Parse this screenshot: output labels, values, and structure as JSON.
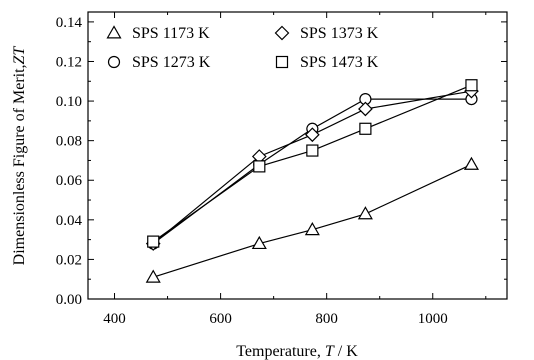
{
  "chart_data": {
    "type": "line",
    "xlabel_text": "Temperature, ",
    "xlabel_symbol": "T",
    "xlabel_unit": " / K",
    "ylabel_text": "Dimensionless Figure of Merit,",
    "ylabel_symbol": "ZT",
    "xlim": [
      350,
      1140
    ],
    "ylim": [
      0.0,
      0.145
    ],
    "x_ticks": [
      400,
      600,
      800,
      1000
    ],
    "x_tick_labels": [
      "400",
      "600",
      "800",
      "1000"
    ],
    "y_ticks": [
      0.0,
      0.02,
      0.04,
      0.06,
      0.08,
      0.1,
      0.12,
      0.14
    ],
    "y_tick_labels": [
      "0.00",
      "0.02",
      "0.04",
      "0.06",
      "0.08",
      "0.10",
      "0.12",
      "0.14"
    ],
    "legend_placement": "top-left",
    "series": [
      {
        "name": "SPS  1173 K",
        "marker": "triangle",
        "x": [
          473,
          673,
          773,
          873,
          1073
        ],
        "values": [
          0.011,
          0.028,
          0.035,
          0.043,
          0.068
        ]
      },
      {
        "name": "SPS  1273 K",
        "marker": "circle",
        "x": [
          473,
          673,
          773,
          873,
          1073
        ],
        "values": [
          0.028,
          0.068,
          0.086,
          0.101,
          0.101
        ]
      },
      {
        "name": "SPS  1373 K",
        "marker": "diamond",
        "x": [
          473,
          673,
          773,
          873,
          1073
        ],
        "values": [
          0.028,
          0.072,
          0.083,
          0.096,
          0.105
        ]
      },
      {
        "name": "SPS  1473 K",
        "marker": "square",
        "x": [
          473,
          673,
          773,
          873,
          1073
        ],
        "values": [
          0.029,
          0.067,
          0.075,
          0.086,
          0.108
        ]
      }
    ]
  }
}
